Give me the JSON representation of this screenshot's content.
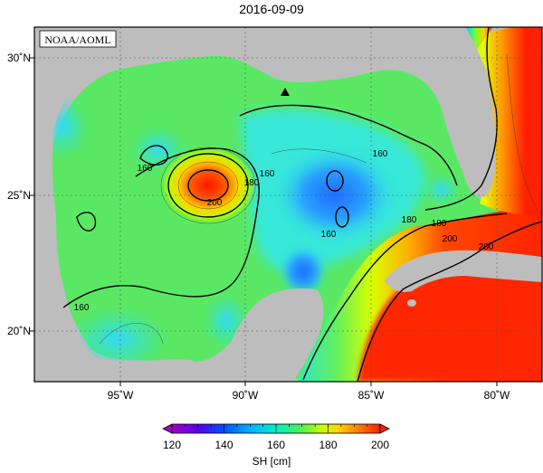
{
  "title": "2016-09-09",
  "agency_label": "NOAA/AOML",
  "colorbar": {
    "label": "SH [cm]",
    "ticks": [
      "120",
      "140",
      "160",
      "180",
      "200"
    ],
    "min": 120,
    "max": 200,
    "colors": [
      "#a000c8",
      "#5a00e6",
      "#0050ff",
      "#00c8ff",
      "#00f0c8",
      "#30e070",
      "#80ff20",
      "#e6ff00",
      "#ffc800",
      "#ff7000",
      "#ff1e00",
      "#ff3c1e"
    ]
  },
  "axes": {
    "lon_labels": [
      "95˚W",
      "90˚W",
      "85˚W",
      "80˚W"
    ],
    "lat_labels": [
      "30˚N",
      "25˚N",
      "20˚N"
    ]
  },
  "contour_labels": [
    "160",
    "160",
    "160",
    "180",
    "200",
    "160",
    "180",
    "160",
    "180",
    "200",
    "200"
  ],
  "colors": {
    "land": "#bdbdbd",
    "frame": "#000000",
    "grid": "#555555"
  }
}
